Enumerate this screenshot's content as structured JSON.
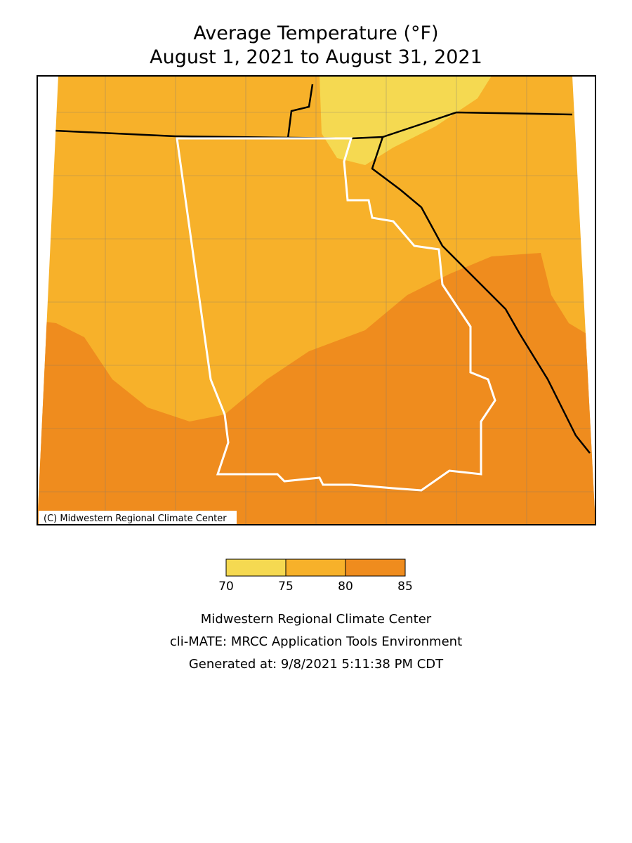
{
  "title": [
    "Average Temperature (°F)",
    "August 1, 2021 to August 31, 2021"
  ],
  "copyright": "(C) Midwestern Regional Climate Center",
  "legend": {
    "bins": [
      70,
      75,
      80,
      85
    ],
    "colors": [
      "#f5d951",
      "#f7b12a",
      "#ef8c1e"
    ]
  },
  "footer": [
    "Midwestern Regional Climate Center",
    "cli-MATE: MRCC Application Tools Environment",
    "Generated at: 9/8/2021 5:11:38 PM CDT"
  ]
}
